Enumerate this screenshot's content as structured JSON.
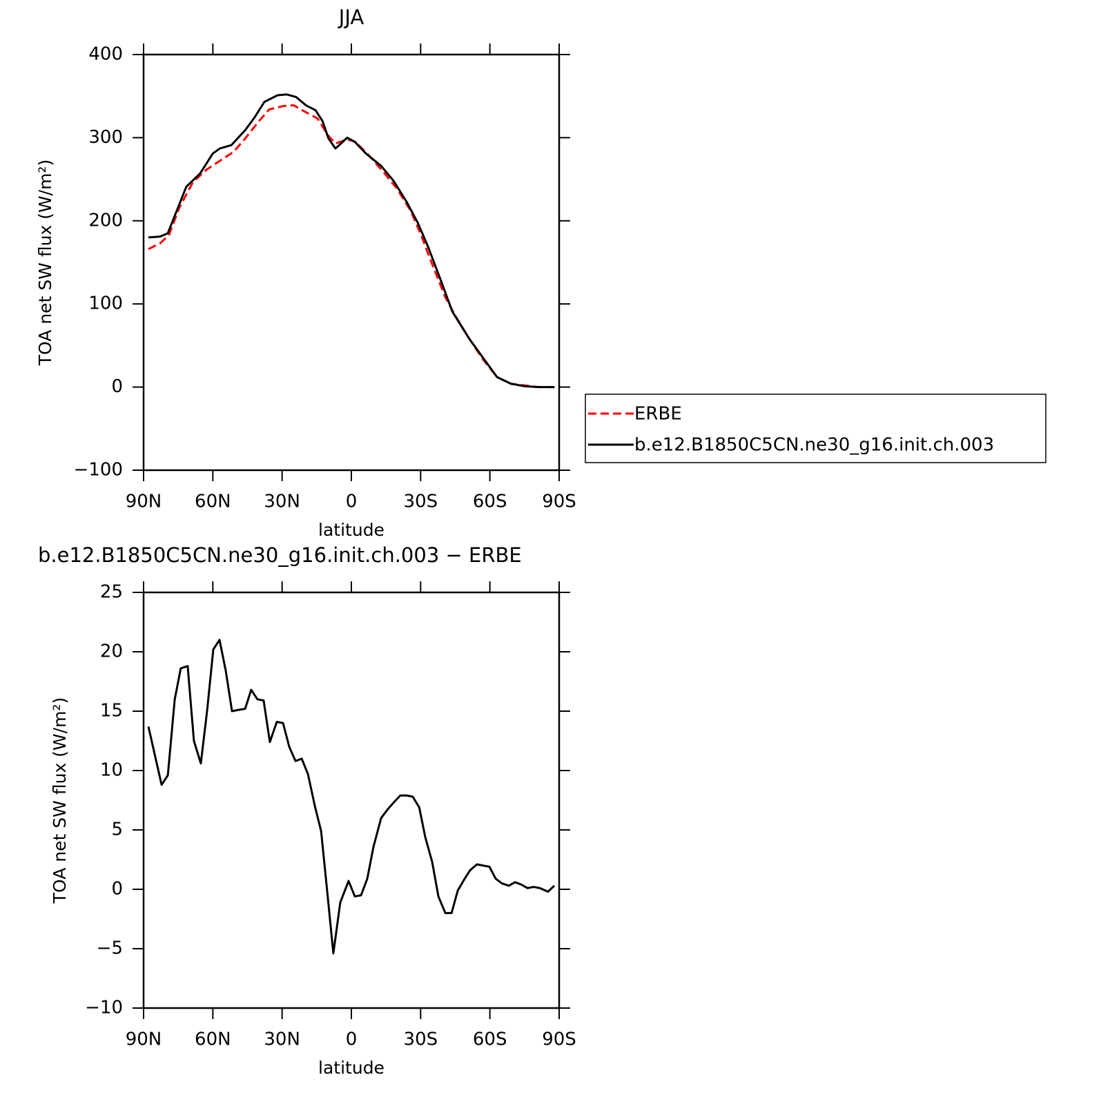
{
  "chart_data": [
    {
      "type": "line",
      "title": "JJA",
      "xlabel": "latitude",
      "ylabel": "TOA net SW flux (W/m²)",
      "xlim": [
        90,
        -90
      ],
      "xticks": [
        {
          "value": 90,
          "label": "90N"
        },
        {
          "value": 60,
          "label": "60N"
        },
        {
          "value": 30,
          "label": "30N"
        },
        0,
        {
          "value": -30,
          "label": "30S"
        },
        {
          "value": -60,
          "label": "60S"
        },
        {
          "value": -90,
          "label": "90S"
        }
      ],
      "ylim": [
        -100,
        400
      ],
      "yticks": [
        {
          "value": -100,
          "label": "−100"
        },
        0,
        100,
        200,
        300,
        400
      ],
      "legend": "right",
      "series": [
        {
          "name": "ERBE",
          "color": "#ff0000",
          "linestyle": "dashed",
          "x": [
            87.9,
            82.8,
            79,
            74.5,
            68.5,
            62.5,
            56.5,
            51,
            46,
            40,
            35.6,
            29.6,
            25,
            20.6,
            14.6,
            10.2,
            6.9,
            1.8,
            -1.8,
            -7.8,
            -13.8,
            -19.7,
            -25.7,
            -30.2,
            -34.7,
            -40.7,
            -45.2,
            -51.1,
            -57.1,
            -63.1,
            -69.1,
            -75.1,
            -81,
            -88
          ],
          "values": [
            166,
            173,
            183,
            216,
            247,
            262,
            273,
            283,
            299,
            320,
            334,
            338,
            339,
            332,
            323,
            303,
            293,
            298,
            295,
            278,
            259,
            239,
            212,
            183,
            150,
            108,
            85,
            58,
            33,
            12,
            4,
            2,
            0,
            0
          ]
        },
        {
          "name": "b.e12.B1850C5CN.ne30_g16.init.ch.003",
          "color": "#000000",
          "linestyle": "solid",
          "x": [
            87.9,
            82.8,
            79.5,
            71.5,
            65.5,
            60,
            57,
            52,
            46,
            42,
            37.7,
            32,
            28,
            24,
            19.7,
            15.5,
            12.5,
            9.9,
            6.9,
            4.5,
            1.8,
            -1.5,
            -6.3,
            -12.9,
            -18.3,
            -23.9,
            -28.7,
            -33.2,
            -39.2,
            -43.7,
            -51.1,
            -57.1,
            -63.1,
            -69.1,
            -75.1,
            -81,
            -88
          ],
          "values": [
            180,
            181,
            185,
            241,
            257,
            281,
            287,
            291,
            309,
            324,
            343,
            351,
            352,
            349,
            339,
            333,
            320,
            299,
            287,
            293,
            300,
            295,
            281,
            266,
            248,
            223,
            198,
            169,
            125,
            91,
            58,
            35,
            12,
            4,
            1,
            0,
            0
          ]
        }
      ]
    },
    {
      "type": "line",
      "title": "b.e12.B1850C5CN.ne30_g16.init.ch.003 − ERBE",
      "xlabel": "latitude",
      "ylabel": "TOA net SW flux (W/m²)",
      "xlim": [
        90,
        -90
      ],
      "xticks": [
        {
          "value": 90,
          "label": "90N"
        },
        {
          "value": 60,
          "label": "60N"
        },
        {
          "value": 30,
          "label": "30N"
        },
        0,
        {
          "value": -30,
          "label": "30S"
        },
        {
          "value": -60,
          "label": "60S"
        },
        {
          "value": -90,
          "label": "90S"
        }
      ],
      "ylim": [
        -10,
        25
      ],
      "yticks": [
        {
          "value": -10,
          "label": "−10"
        },
        {
          "value": -5,
          "label": "−5"
        },
        0,
        5,
        10,
        15,
        20,
        25
      ],
      "color": "#000000",
      "x": [
        87.9,
        82.2,
        79.5,
        76.5,
        73.9,
        70.9,
        68.2,
        65.2,
        62.5,
        59.8,
        57.1,
        54.4,
        51.7,
        49,
        46,
        43.4,
        40.7,
        38,
        35.3,
        32.3,
        29.6,
        26.9,
        24.2,
        21.5,
        18.8,
        15.8,
        13.1,
        10.5,
        7.8,
        4.8,
        1.2,
        -1.5,
        -4.2,
        -6.9,
        -9.6,
        -12.9,
        -15.6,
        -18.3,
        -21.2,
        -23.9,
        -26.6,
        -29.4,
        -32,
        -35,
        -37.7,
        -40.7,
        -43.4,
        -46.1,
        -48.8,
        -51.4,
        -54.4,
        -57.1,
        -59.8,
        -62.5,
        -65.2,
        -68.2,
        -70.9,
        -73.6,
        -76.3,
        -79,
        -81.6,
        -85.2,
        -87.9
      ],
      "values": [
        13.7,
        8.8,
        9.6,
        16,
        18.6,
        18.8,
        12.5,
        10.6,
        15,
        20.2,
        21,
        18.4,
        15,
        15.1,
        15.2,
        16.8,
        16,
        15.9,
        12.4,
        14.1,
        14,
        12,
        10.8,
        11,
        9.7,
        7,
        4.9,
        -0.1,
        -5.4,
        -1.1,
        0.7,
        -0.6,
        -0.5,
        0.9,
        3.6,
        6,
        6.7,
        7.3,
        7.9,
        7.9,
        7.8,
        6.9,
        4.4,
        2.3,
        -0.6,
        -2,
        -2,
        -0.1,
        0.8,
        1.6,
        2.1,
        2,
        1.9,
        0.9,
        0.5,
        0.3,
        0.6,
        0.4,
        0.1,
        0.2,
        0.1,
        -0.2,
        0.3
      ]
    }
  ]
}
